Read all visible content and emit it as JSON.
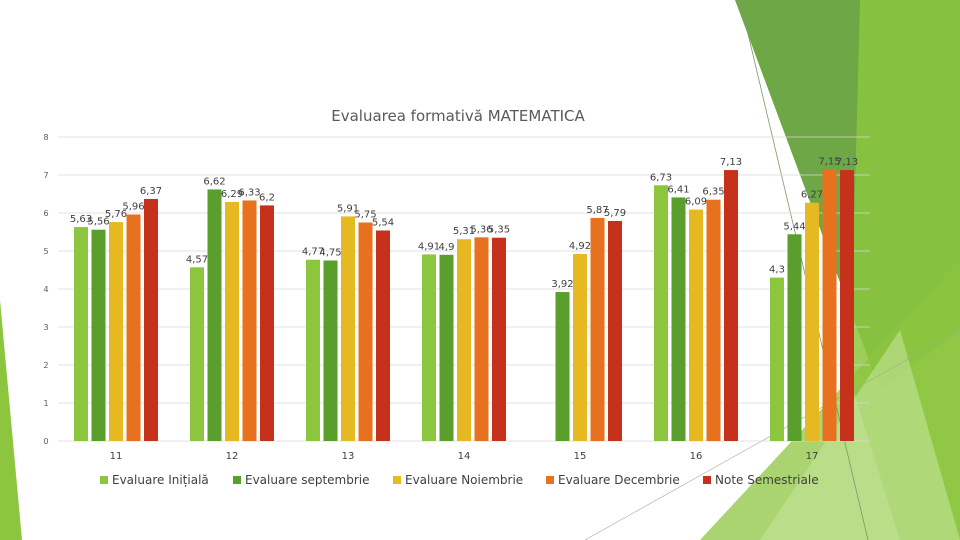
{
  "colors": {
    "deco_dark": "#5e9d32",
    "deco_light": "#8cc63f",
    "deco_pale": "#c5e29a"
  },
  "chart_data": {
    "type": "bar",
    "title": "Evaluarea formativă MATEMATICA",
    "categories": [
      "11",
      "12",
      "13",
      "14",
      "15",
      "16",
      "17"
    ],
    "ylim": [
      0,
      8
    ],
    "yticks": [
      "0",
      "1",
      "2",
      "3",
      "4",
      "5",
      "6",
      "7",
      "8"
    ],
    "grid": true,
    "legend_position": "bottom",
    "series": [
      {
        "name": "Evaluare Inițială",
        "color": "#8cc63f",
        "values": [
          5.63,
          4.57,
          4.77,
          4.91,
          null,
          6.73,
          4.3
        ],
        "labels": [
          "5,63",
          "4,57",
          "4,77",
          "4,91",
          "",
          "6,73",
          "4,3"
        ]
      },
      {
        "name": "Evaluare septembrie",
        "color": "#5a9e2c",
        "values": [
          5.56,
          6.62,
          4.75,
          4.9,
          3.92,
          6.41,
          5.44
        ],
        "labels": [
          "5,56",
          "6,62",
          "4,75",
          "4,9",
          "3,92",
          "6,41",
          "5,44"
        ]
      },
      {
        "name": "Evaluare Noiembrie",
        "color": "#e6b822",
        "values": [
          5.76,
          6.29,
          5.91,
          5.31,
          4.92,
          6.09,
          6.27
        ],
        "labels": [
          "5,76",
          "6,29",
          "5,91",
          "5,31",
          "4,92",
          "6,09",
          "6,27"
        ]
      },
      {
        "name": "Evaluare Decembrie",
        "color": "#e8711f",
        "values": [
          5.96,
          6.33,
          5.75,
          5.36,
          5.87,
          6.35,
          7.15
        ],
        "labels": [
          "5,96",
          "6,33",
          "5,75",
          "5,36",
          "5,87",
          "6,35",
          "7,15"
        ]
      },
      {
        "name": "Note Semestriale",
        "color": "#c6311c",
        "values": [
          6.37,
          6.2,
          5.54,
          5.35,
          5.79,
          7.13,
          7.13
        ],
        "labels": [
          "6,37",
          "6,2",
          "5,54",
          "5,35",
          "5,79",
          "7,13",
          "7,13"
        ]
      }
    ]
  }
}
